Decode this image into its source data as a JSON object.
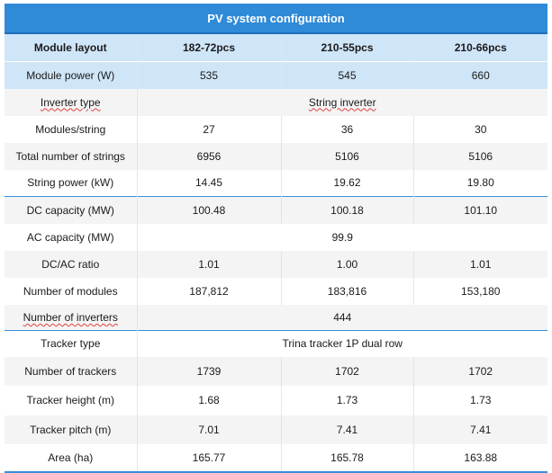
{
  "title": "PV system configuration",
  "header": [
    "Module layout",
    "182-72pcs",
    "210-55pcs",
    "210-66pcs"
  ],
  "rows": [
    {
      "label": "Module power (W)",
      "values": [
        "535",
        "545",
        "660"
      ]
    },
    {
      "label": "Inverter type",
      "span_value": "String inverter"
    },
    {
      "label": "Modules/string",
      "values": [
        "27",
        "36",
        "30"
      ]
    },
    {
      "label": "Total number of strings",
      "values": [
        "6956",
        "5106",
        "5106"
      ]
    },
    {
      "label": "String power (kW)",
      "values": [
        "14.45",
        "19.62",
        "19.80"
      ]
    },
    {
      "label": "DC capacity (MW)",
      "values": [
        "100.48",
        "100.18",
        "101.10"
      ]
    },
    {
      "label": "AC capacity (MW)",
      "span_value": "99.9"
    },
    {
      "label": "DC/AC ratio",
      "values": [
        "1.01",
        "1.00",
        "1.01"
      ]
    },
    {
      "label": "Number of modules",
      "values": [
        "187,812",
        "183,816",
        "153,180"
      ]
    },
    {
      "label": "Number of inverters",
      "span_value": "444"
    },
    {
      "label": "Tracker type",
      "span_value": "Trina tracker 1P dual row"
    },
    {
      "label": "Number of trackers",
      "values": [
        "1739",
        "1702",
        "1702"
      ]
    },
    {
      "label": "Tracker height (m)",
      "values": [
        "1.68",
        "1.73",
        "1.73"
      ]
    },
    {
      "label": "Tracker pitch (m)",
      "values": [
        "7.01",
        "7.41",
        "7.41"
      ]
    },
    {
      "label": "Area (ha)",
      "values": [
        "165.77",
        "165.78",
        "163.88"
      ]
    }
  ],
  "colors": {
    "title_bg": "#2f8ad8",
    "header_bg": "#cfe5f8",
    "accent_line": "#3a8fd8"
  }
}
